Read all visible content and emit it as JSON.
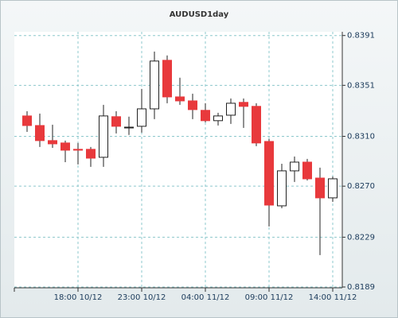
{
  "chart_data": {
    "type": "candlestick",
    "title": "AUDUSD1day",
    "categories": [
      null,
      null,
      null,
      null,
      "18:00 10/12",
      null,
      null,
      null,
      null,
      "23:00 10/12",
      null,
      null,
      null,
      null,
      "04:00 11/12",
      null,
      null,
      null,
      null,
      "09:00 11/12",
      null,
      null,
      null,
      null,
      "14:00 11/12"
    ],
    "open": [
      0.83264,
      0.83187,
      0.83066,
      0.83047,
      0.82996,
      0.82996,
      0.82932,
      0.83258,
      0.83174,
      0.83181,
      0.83321,
      0.83711,
      0.83417,
      0.83385,
      0.83309,
      0.83226,
      0.8327,
      0.83373,
      0.83341,
      0.83059,
      0.82542,
      0.82823,
      0.82893,
      0.82765,
      0.82606
    ],
    "high": [
      0.83302,
      0.83283,
      0.83194,
      0.83066,
      0.83047,
      0.83015,
      0.83353,
      0.83302,
      0.83258,
      0.83481,
      0.83781,
      0.8375,
      0.83571,
      0.83443,
      0.83366,
      0.83289,
      0.83404,
      0.83404,
      0.83366,
      0.83079,
      0.8288,
      0.82938,
      0.82919,
      0.82849,
      0.82778
    ],
    "low": [
      0.83136,
      0.83015,
      0.83008,
      0.82893,
      0.82874,
      0.82855,
      0.82855,
      0.83123,
      0.83111,
      0.8313,
      0.83238,
      0.83366,
      0.83353,
      0.83238,
      0.83213,
      0.83187,
      0.832,
      0.83168,
      0.83021,
      0.82376,
      0.82523,
      0.82734,
      0.82746,
      0.82146,
      0.82574
    ],
    "close": [
      0.83187,
      0.83066,
      0.8304,
      0.82989,
      0.82989,
      0.82925,
      0.83264,
      0.83181,
      0.83174,
      0.83321,
      0.83705,
      0.83417,
      0.83385,
      0.83315,
      0.83226,
      0.83264,
      0.83366,
      0.83341,
      0.83047,
      0.82548,
      0.82823,
      0.82893,
      0.82759,
      0.82606,
      0.82759
    ],
    "up_color": "#ffffff",
    "down_color": "#e8393c",
    "ylim": [
      0.8189,
      0.8394
    ],
    "yticks": [
      0.8189,
      0.8229,
      {
        "value": 0.827,
        "label": "0.8270"
      },
      {
        "value": 0.831,
        "label": "0.8310"
      },
      0.8351,
      0.8391
    ],
    "grid": true
  }
}
